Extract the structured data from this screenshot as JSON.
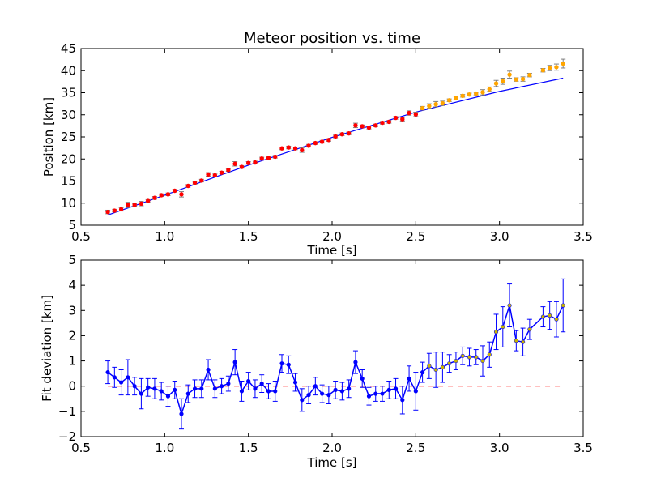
{
  "chart_data": [
    {
      "type": "scatter",
      "title": "Meteor position vs. time",
      "xlabel": "Time [s]",
      "ylabel": "Position [km]",
      "xlim": [
        0.5,
        3.5
      ],
      "ylim": [
        5,
        45
      ],
      "xticks": [
        "0.5",
        "1.0",
        "1.5",
        "2.0",
        "2.5",
        "3.0",
        "3.5"
      ],
      "yticks": [
        "5",
        "10",
        "15",
        "20",
        "25",
        "30",
        "35",
        "40",
        "45"
      ],
      "colors": {
        "early": "#ff0000",
        "late": "#ffa500",
        "fit": "#0000ff",
        "errorbar": "#808080"
      },
      "series": [
        {
          "marker_color": "red",
          "x": [
            0.66,
            0.7,
            0.74,
            0.78,
            0.82,
            0.86,
            0.9,
            0.94,
            0.98,
            1.02,
            1.06,
            1.1,
            1.14,
            1.18,
            1.22,
            1.26,
            1.3,
            1.34,
            1.38,
            1.42,
            1.46,
            1.5,
            1.54,
            1.58,
            1.62,
            1.66,
            1.7,
            1.74,
            1.78,
            1.82,
            1.86,
            1.9,
            1.94,
            1.98,
            2.02,
            2.06,
            2.1,
            2.14,
            2.18,
            2.22,
            2.26,
            2.3,
            2.34,
            2.38,
            2.42,
            2.46,
            2.5
          ],
          "y": [
            8.0,
            8.3,
            8.6,
            9.6,
            9.6,
            9.9,
            10.5,
            11.2,
            11.8,
            12.0,
            12.8,
            12.0,
            13.9,
            14.6,
            15.1,
            16.5,
            16.3,
            16.9,
            17.5,
            18.9,
            18.2,
            19.1,
            19.2,
            20.1,
            20.2,
            20.5,
            22.4,
            22.6,
            22.4,
            22.0,
            23.0,
            23.6,
            23.9,
            24.3,
            25.1,
            25.6,
            25.8,
            27.6,
            27.4,
            27.1,
            27.6,
            28.2,
            28.4,
            29.3,
            29.0,
            30.4,
            30.1
          ],
          "error": [
            0.4,
            0.3,
            0.4,
            0.6,
            0.3,
            0.5,
            0.3,
            0.3,
            0.3,
            0.3,
            0.3,
            0.6,
            0.3,
            0.3,
            0.3,
            0.4,
            0.3,
            0.3,
            0.3,
            0.5,
            0.3,
            0.3,
            0.3,
            0.3,
            0.3,
            0.3,
            0.3,
            0.3,
            0.3,
            0.5,
            0.3,
            0.3,
            0.3,
            0.3,
            0.3,
            0.3,
            0.3,
            0.5,
            0.3,
            0.3,
            0.3,
            0.3,
            0.3,
            0.3,
            0.4,
            0.5,
            0.5
          ]
        },
        {
          "marker_color": "orange",
          "x": [
            2.54,
            2.58,
            2.62,
            2.66,
            2.7,
            2.74,
            2.78,
            2.82,
            2.86,
            2.9,
            2.94,
            2.98,
            3.02,
            3.06,
            3.1,
            3.14,
            3.18,
            3.26,
            3.3,
            3.34,
            3.38
          ],
          "y": [
            31.5,
            32.0,
            32.4,
            32.6,
            33.3,
            33.8,
            34.3,
            34.6,
            34.8,
            35.1,
            35.8,
            37.1,
            37.6,
            39.1,
            38.0,
            38.1,
            39.0,
            40.1,
            40.6,
            40.8,
            41.6
          ],
          "error": [
            0.4,
            0.5,
            0.6,
            0.5,
            0.3,
            0.3,
            0.3,
            0.3,
            0.3,
            0.6,
            0.5,
            0.7,
            0.7,
            0.8,
            0.4,
            0.5,
            0.4,
            0.4,
            0.6,
            0.7,
            1.0
          ]
        }
      ],
      "fit_line": {
        "x": [
          0.66,
          1.0,
          1.5,
          2.0,
          2.5,
          3.0,
          3.38
        ],
        "y": [
          7.3,
          11.8,
          18.6,
          24.9,
          30.6,
          35.3,
          38.3
        ]
      }
    },
    {
      "type": "line",
      "xlabel": "Time [s]",
      "ylabel": "Fit deviation [km]",
      "xlim": [
        0.5,
        3.5
      ],
      "ylim": [
        -2,
        5
      ],
      "xticks": [
        "0.5",
        "1.0",
        "1.5",
        "2.0",
        "2.5",
        "3.0",
        "3.5"
      ],
      "yticks": [
        "−2",
        "−1",
        "0",
        "1",
        "2",
        "3",
        "4",
        "5"
      ],
      "colors": {
        "line": "#0000ff",
        "early_marker": "#0000ff",
        "late_marker": "#c8b400",
        "zero_line": "#ff0000"
      },
      "zero_line": {
        "x_from": 0.66,
        "x_to": 3.38,
        "y": 0,
        "style": "dashed"
      },
      "series": [
        {
          "x": [
            0.66,
            0.7,
            0.74,
            0.78,
            0.82,
            0.86,
            0.9,
            0.94,
            0.98,
            1.02,
            1.06,
            1.1,
            1.14,
            1.18,
            1.22,
            1.26,
            1.3,
            1.34,
            1.38,
            1.42,
            1.46,
            1.5,
            1.54,
            1.58,
            1.62,
            1.66,
            1.7,
            1.74,
            1.78,
            1.82,
            1.86,
            1.9,
            1.94,
            1.98,
            2.02,
            2.06,
            2.1,
            2.14,
            2.18,
            2.22,
            2.26,
            2.3,
            2.34,
            2.38,
            2.42,
            2.46,
            2.5,
            2.54,
            2.58,
            2.62,
            2.66,
            2.7,
            2.74,
            2.78,
            2.82,
            2.86,
            2.9,
            2.94,
            2.98,
            3.02,
            3.06,
            3.1,
            3.14,
            3.18,
            3.26,
            3.3,
            3.34,
            3.38
          ],
          "y": [
            0.55,
            0.35,
            0.15,
            0.35,
            0.0,
            -0.3,
            -0.05,
            -0.1,
            -0.2,
            -0.4,
            -0.15,
            -1.1,
            -0.3,
            -0.1,
            -0.1,
            0.65,
            -0.1,
            0.0,
            0.1,
            0.95,
            -0.2,
            0.2,
            -0.1,
            0.1,
            -0.2,
            -0.2,
            0.9,
            0.85,
            0.15,
            -0.55,
            -0.35,
            0.0,
            -0.3,
            -0.35,
            -0.15,
            -0.2,
            -0.1,
            0.95,
            0.3,
            -0.4,
            -0.3,
            -0.3,
            -0.15,
            -0.1,
            -0.55,
            0.3,
            -0.2,
            0.55,
            0.8,
            0.65,
            0.75,
            0.9,
            1.0,
            1.2,
            1.15,
            1.15,
            1.0,
            1.25,
            2.15,
            2.35,
            3.2,
            1.8,
            1.75,
            2.25,
            2.75,
            2.8,
            2.65,
            3.2
          ],
          "error": [
            0.45,
            0.4,
            0.5,
            0.7,
            0.35,
            0.6,
            0.35,
            0.4,
            0.35,
            0.4,
            0.35,
            0.6,
            0.35,
            0.35,
            0.35,
            0.4,
            0.35,
            0.3,
            0.3,
            0.5,
            0.4,
            0.35,
            0.35,
            0.35,
            0.3,
            0.4,
            0.35,
            0.35,
            0.35,
            0.45,
            0.35,
            0.35,
            0.35,
            0.35,
            0.35,
            0.35,
            0.35,
            0.45,
            0.35,
            0.35,
            0.3,
            0.3,
            0.35,
            0.4,
            0.55,
            0.5,
            0.75,
            0.4,
            0.5,
            0.7,
            0.6,
            0.35,
            0.35,
            0.35,
            0.35,
            0.3,
            0.6,
            0.5,
            0.7,
            0.8,
            0.85,
            0.4,
            0.55,
            0.4,
            0.4,
            0.55,
            0.7,
            1.05
          ],
          "late_from_x": 2.58
        }
      ]
    }
  ]
}
